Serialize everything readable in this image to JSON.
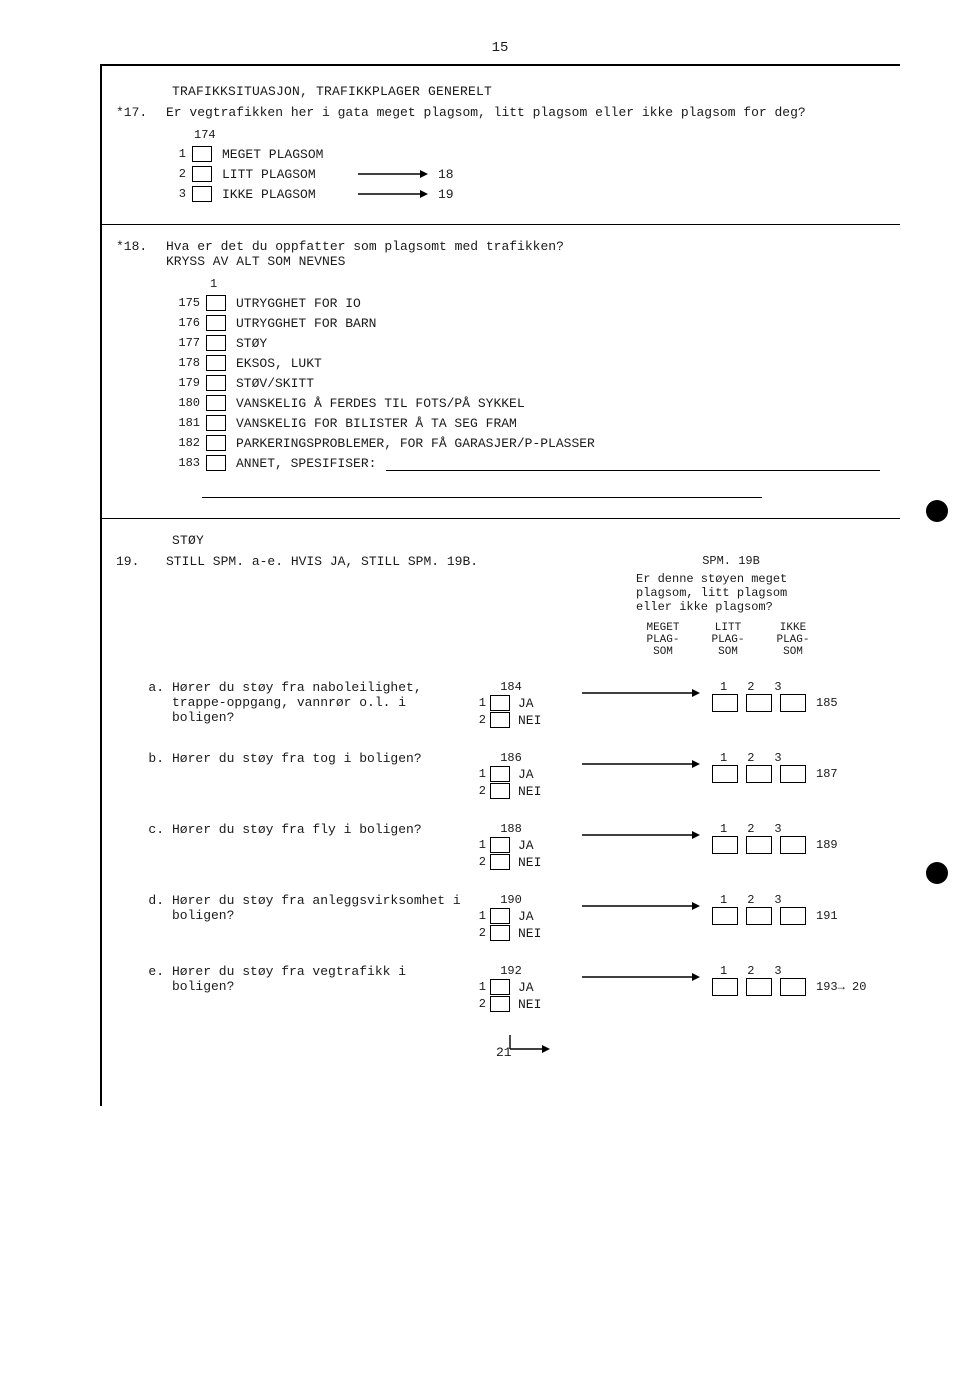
{
  "page_number": "15",
  "section1_title": "TRAFIKKSITUASJON, TRAFIKKPLAGER GENERELT",
  "q17": {
    "num": "*17.",
    "text": "Er vegtrafikken her i gata meget plagsom, litt plagsom eller ikke plagsom for deg?",
    "col": "174",
    "options": [
      {
        "n": "1",
        "label": "MEGET PLAGSOM",
        "skip": ""
      },
      {
        "n": "2",
        "label": "LITT PLAGSOM",
        "skip": "18"
      },
      {
        "n": "3",
        "label": "IKKE PLAGSOM",
        "skip": "19"
      }
    ]
  },
  "q18": {
    "num": "*18.",
    "text": "Hva er det du oppfatter som plagsomt med trafikken?",
    "sub": "KRYSS AV ALT SOM NEVNES",
    "head": "1",
    "options": [
      {
        "col": "175",
        "label": "UTRYGGHET FOR IO"
      },
      {
        "col": "176",
        "label": "UTRYGGHET FOR BARN"
      },
      {
        "col": "177",
        "label": "STØY"
      },
      {
        "col": "178",
        "label": "EKSOS, LUKT"
      },
      {
        "col": "179",
        "label": "STØV/SKITT"
      },
      {
        "col": "180",
        "label": "VANSKELIG Å FERDES TIL FOTS/PÅ SYKKEL"
      },
      {
        "col": "181",
        "label": "VANSKELIG FOR BILISTER Å TA SEG FRAM"
      },
      {
        "col": "182",
        "label": "PARKERINGSPROBLEMER, FOR FÅ GARASJER/P-PLASSER"
      },
      {
        "col": "183",
        "label": "ANNET, SPESIFISER:"
      }
    ]
  },
  "section2_title": "STØY",
  "q19": {
    "num": "19.",
    "text": "STILL SPM. a-e. HVIS JA, STILL SPM. 19B.",
    "b_title": "SPM. 19B",
    "b_text": "Er denne støyen meget plagsom, litt plagsom eller ikke plagsom?",
    "scale_heads": [
      [
        "MEGET",
        "PLAG-",
        "SOM"
      ],
      [
        "LITT",
        "PLAG-",
        "SOM"
      ],
      [
        "IKKE",
        "PLAG-",
        "SOM"
      ]
    ],
    "scale_nums": [
      "1",
      "2",
      "3"
    ],
    "ja": "JA",
    "nei": "NEI",
    "items": [
      {
        "l": "a.",
        "q": "Hører du støy fra naboleilighet, trappe-oppgang, vannrør o.l. i boligen?",
        "col": "184",
        "trail": "185"
      },
      {
        "l": "b.",
        "q": "Hører du støy fra tog i boligen?",
        "col": "186",
        "trail": "187"
      },
      {
        "l": "c.",
        "q": "Hører du støy fra fly i boligen?",
        "col": "188",
        "trail": "189"
      },
      {
        "l": "d.",
        "q": "Hører du støy fra anleggsvirksomhet i boligen?",
        "col": "190",
        "trail": "191"
      },
      {
        "l": "e.",
        "q": "Hører du støy fra vegtrafikk i boligen?",
        "col": "192",
        "trail": "193→ 20"
      }
    ],
    "down_skip": "21"
  }
}
